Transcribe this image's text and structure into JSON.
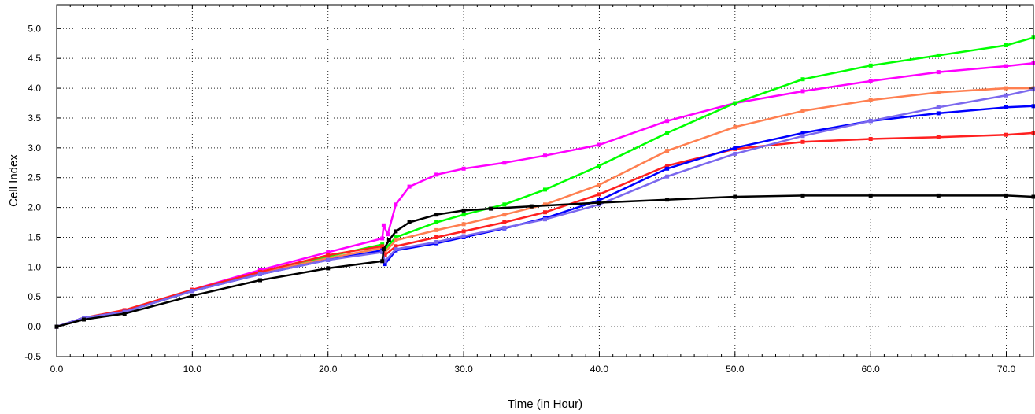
{
  "chart_data": {
    "type": "line",
    "title": "",
    "xlabel": "Time (in Hour)",
    "ylabel": "Cell Index",
    "xlim": [
      0,
      72
    ],
    "ylim": [
      -0.5,
      5.4
    ],
    "x_ticks": [
      0,
      10,
      20,
      30,
      40,
      50,
      60,
      70
    ],
    "x_tick_labels": [
      "0.0",
      "10.0",
      "20.0",
      "30.0",
      "40.0",
      "50.0",
      "60.0",
      "70.0"
    ],
    "y_ticks": [
      -0.5,
      0,
      0.5,
      1,
      1.5,
      2,
      2.5,
      3,
      3.5,
      4,
      4.5,
      5
    ],
    "y_tick_labels": [
      "-0.5",
      "0.0",
      "0.5",
      "1.0",
      "1.5",
      "2.0",
      "2.5",
      "3.0",
      "3.5",
      "4.0",
      "4.5",
      "5.0"
    ],
    "grid": true,
    "legend": "none",
    "series": [
      {
        "color": "#ff00ff",
        "x": [
          0,
          2,
          5,
          10,
          15,
          20,
          24,
          24.1,
          24.4,
          25,
          26,
          28,
          30,
          33,
          36,
          40,
          45,
          50,
          55,
          60,
          65,
          70,
          72
        ],
        "y": [
          0,
          0.15,
          0.25,
          0.62,
          0.95,
          1.25,
          1.48,
          1.7,
          1.55,
          2.05,
          2.35,
          2.55,
          2.65,
          2.75,
          2.87,
          3.05,
          3.45,
          3.75,
          3.95,
          4.12,
          4.27,
          4.37,
          4.42
        ]
      },
      {
        "color": "#00ff00",
        "x": [
          0,
          2,
          5,
          10,
          15,
          20,
          24,
          24.2,
          25,
          28,
          30,
          33,
          36,
          40,
          45,
          50,
          55,
          60,
          65,
          70,
          72
        ],
        "y": [
          0,
          0.15,
          0.25,
          0.6,
          0.9,
          1.18,
          1.38,
          1.3,
          1.5,
          1.75,
          1.88,
          2.05,
          2.3,
          2.7,
          3.25,
          3.75,
          4.15,
          4.38,
          4.55,
          4.72,
          4.85
        ]
      },
      {
        "color": "#ff7f50",
        "x": [
          0,
          2,
          5,
          10,
          15,
          20,
          24,
          24.2,
          25,
          28,
          30,
          33,
          36,
          40,
          45,
          50,
          55,
          60,
          65,
          70,
          72
        ],
        "y": [
          0,
          0.15,
          0.25,
          0.6,
          0.9,
          1.15,
          1.32,
          1.25,
          1.45,
          1.62,
          1.72,
          1.88,
          2.05,
          2.38,
          2.95,
          3.35,
          3.62,
          3.8,
          3.93,
          4.0,
          4.0
        ]
      },
      {
        "color": "#ff2020",
        "x": [
          0,
          2,
          5,
          10,
          15,
          20,
          24,
          24.2,
          25,
          28,
          30,
          33,
          36,
          40,
          45,
          50,
          55,
          60,
          65,
          70,
          72
        ],
        "y": [
          0,
          0.15,
          0.28,
          0.62,
          0.92,
          1.2,
          1.35,
          1.2,
          1.35,
          1.5,
          1.6,
          1.75,
          1.92,
          2.22,
          2.7,
          2.98,
          3.1,
          3.15,
          3.18,
          3.22,
          3.25
        ]
      },
      {
        "color": "#0000ff",
        "x": [
          0,
          2,
          5,
          10,
          15,
          20,
          24,
          24.2,
          25,
          28,
          30,
          33,
          36,
          40,
          45,
          50,
          55,
          60,
          65,
          70,
          72
        ],
        "y": [
          0,
          0.15,
          0.25,
          0.6,
          0.88,
          1.12,
          1.28,
          1.05,
          1.28,
          1.4,
          1.5,
          1.65,
          1.82,
          2.12,
          2.65,
          3.0,
          3.25,
          3.45,
          3.58,
          3.68,
          3.7
        ]
      },
      {
        "color": "#7b68ee",
        "x": [
          0,
          2,
          5,
          10,
          15,
          20,
          24,
          24.2,
          25,
          28,
          30,
          33,
          36,
          40,
          45,
          50,
          55,
          60,
          65,
          70,
          72
        ],
        "y": [
          0,
          0.15,
          0.25,
          0.6,
          0.88,
          1.12,
          1.25,
          1.1,
          1.3,
          1.42,
          1.52,
          1.66,
          1.8,
          2.05,
          2.52,
          2.9,
          3.2,
          3.45,
          3.68,
          3.88,
          3.98
        ]
      },
      {
        "color": "#000000",
        "x": [
          0,
          2,
          5,
          10,
          15,
          20,
          24,
          24.1,
          24.5,
          25,
          26,
          28,
          30,
          32,
          35,
          40,
          45,
          50,
          55,
          60,
          65,
          70,
          72
        ],
        "y": [
          0,
          0.12,
          0.22,
          0.52,
          0.78,
          0.98,
          1.1,
          1.3,
          1.45,
          1.6,
          1.75,
          1.88,
          1.95,
          1.98,
          2.02,
          2.08,
          2.13,
          2.18,
          2.2,
          2.2,
          2.2,
          2.2,
          2.18
        ]
      }
    ]
  }
}
